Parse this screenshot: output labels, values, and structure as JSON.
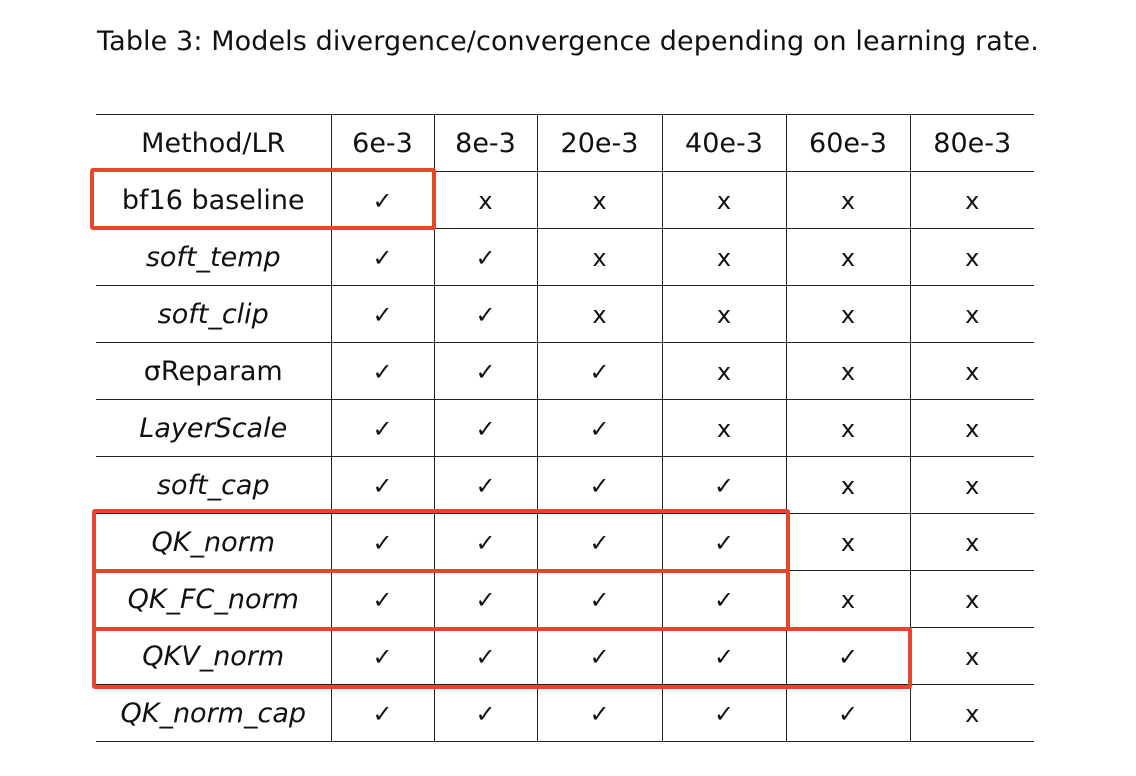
{
  "caption": "Table 3: Models divergence/convergence depending on learning rate.",
  "table": {
    "headers": [
      "Method/LR",
      "6e-3",
      "8e-3",
      "20e-3",
      "40e-3",
      "60e-3",
      "80e-3"
    ],
    "rows": [
      {
        "method": "bf16 baseline",
        "italic": false,
        "cells": [
          "✓",
          "x",
          "x",
          "x",
          "x",
          "x"
        ]
      },
      {
        "method": "soft_temp",
        "italic": true,
        "cells": [
          "✓",
          "✓",
          "x",
          "x",
          "x",
          "x"
        ]
      },
      {
        "method": "soft_clip",
        "italic": true,
        "cells": [
          "✓",
          "✓",
          "x",
          "x",
          "x",
          "x"
        ]
      },
      {
        "method": "σReparam",
        "italic": false,
        "cells": [
          "✓",
          "✓",
          "✓",
          "x",
          "x",
          "x"
        ]
      },
      {
        "method": "LayerScale",
        "italic": true,
        "cells": [
          "✓",
          "✓",
          "✓",
          "x",
          "x",
          "x"
        ]
      },
      {
        "method": "soft_cap",
        "italic": true,
        "cells": [
          "✓",
          "✓",
          "✓",
          "✓",
          "x",
          "x"
        ]
      },
      {
        "method": "QK_norm",
        "italic": true,
        "cells": [
          "✓",
          "✓",
          "✓",
          "✓",
          "x",
          "x"
        ]
      },
      {
        "method": "QK_FC_norm",
        "italic": true,
        "cells": [
          "✓",
          "✓",
          "✓",
          "✓",
          "x",
          "x"
        ]
      },
      {
        "method": "QKV_norm",
        "italic": true,
        "cells": [
          "✓",
          "✓",
          "✓",
          "✓",
          "✓",
          "x"
        ]
      },
      {
        "method": "QK_norm_cap",
        "italic": true,
        "cells": [
          "✓",
          "✓",
          "✓",
          "✓",
          "✓",
          "x"
        ]
      }
    ]
  },
  "highlight_color": "#e8462a"
}
